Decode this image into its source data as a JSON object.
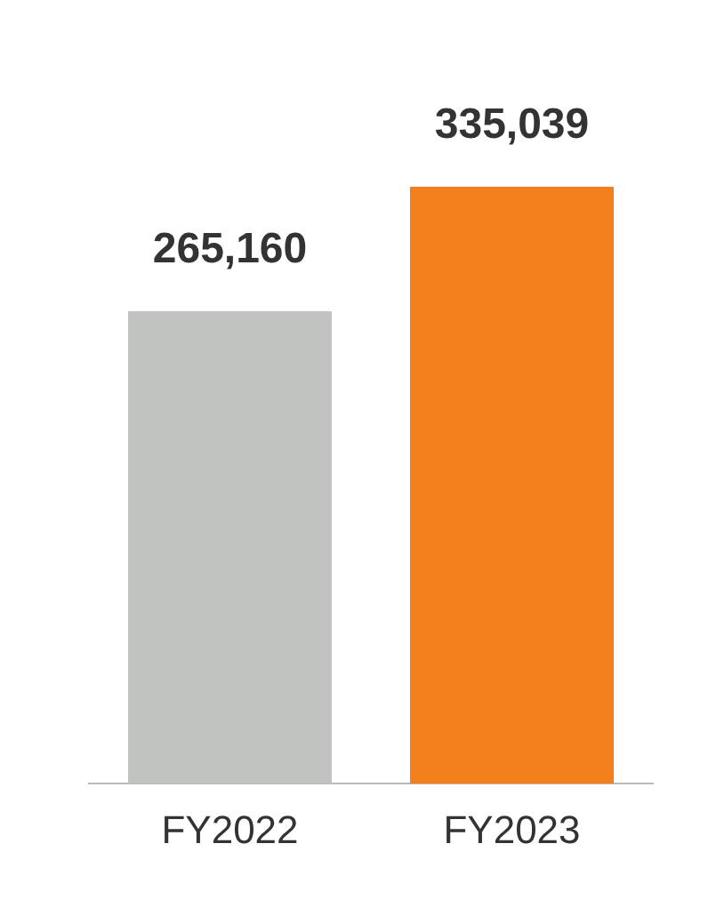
{
  "chart_data": {
    "type": "bar",
    "categories": [
      "FY2022",
      "FY2023"
    ],
    "values": [
      265160,
      335039
    ],
    "colors": [
      "#c1c3c0",
      "#f27f1b"
    ],
    "value_labels": [
      "265,160",
      "335,039"
    ],
    "grid": false,
    "legend": false,
    "tick_labels": "x"
  }
}
